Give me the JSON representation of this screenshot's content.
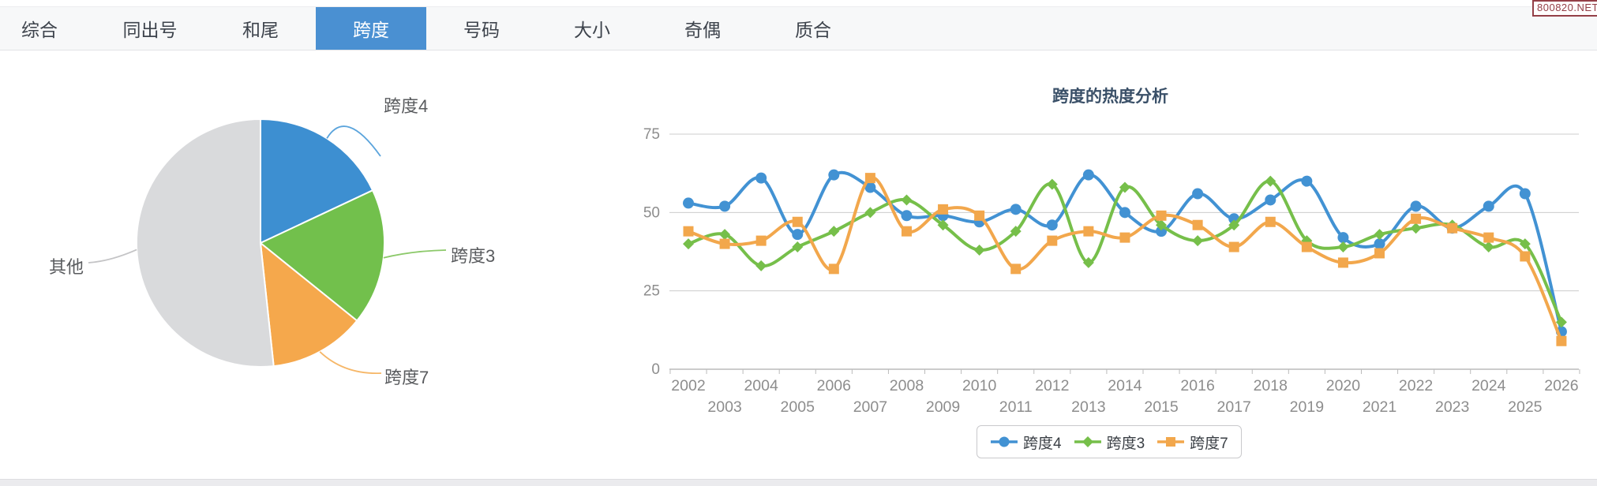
{
  "badge": {
    "text": "800820.NET"
  },
  "tabs": [
    {
      "name": "zonghe",
      "label": "综合",
      "active": false
    },
    {
      "name": "tongchuhao",
      "label": "同出号",
      "active": false
    },
    {
      "name": "hewei",
      "label": "和尾",
      "active": false
    },
    {
      "name": "kuadu",
      "label": "跨度",
      "active": true
    },
    {
      "name": "haoma",
      "label": "号码",
      "active": false
    },
    {
      "name": "daxiao",
      "label": "大小",
      "active": false
    },
    {
      "name": "jiou",
      "label": "奇偶",
      "active": false
    },
    {
      "name": "zhihe",
      "label": "质合",
      "active": false
    }
  ],
  "colors": {
    "accent": "#4a90d2",
    "blue": "#4292d3",
    "green": "#76bf4a",
    "orange": "#f2a74c",
    "pie_gray": "#d9dadc",
    "axis_text": "#8d8d8d",
    "grid": "#cccccc",
    "axis_line": "#bbbbbb",
    "title": "#3a5068",
    "badge": "#943f47"
  },
  "chart_data": [
    {
      "type": "pie",
      "title": "",
      "legend_position": "none",
      "slices": [
        {
          "label": "跨度4",
          "fraction": 0.18,
          "color": "#3d8fd1"
        },
        {
          "label": "跨度3",
          "fraction": 0.178,
          "color": "#72c04c"
        },
        {
          "label": "跨度7",
          "fraction": 0.125,
          "color": "#f5a84c"
        },
        {
          "label": "其他",
          "fraction": 0.517,
          "color": "#d9dadc"
        }
      ],
      "start_angle_deg": 0,
      "clockwise": true
    },
    {
      "type": "line",
      "title": "跨度的热度分析",
      "xlabel": "",
      "ylabel": "",
      "ylim": [
        0,
        75
      ],
      "yticks": [
        0,
        25,
        50,
        75
      ],
      "grid": true,
      "legend_position": "bottom",
      "x": [
        2002,
        2003,
        2004,
        2005,
        2006,
        2007,
        2008,
        2009,
        2010,
        2011,
        2012,
        2013,
        2014,
        2015,
        2016,
        2017,
        2018,
        2019,
        2020,
        2021,
        2022,
        2023,
        2024,
        2025,
        2026
      ],
      "series": [
        {
          "name": "跨度4",
          "color": "#4292d3",
          "marker": "circle",
          "values": [
            53,
            52,
            61,
            43,
            62,
            58,
            49,
            49,
            47,
            51,
            46,
            62,
            50,
            44,
            56,
            48,
            54,
            60,
            42,
            40,
            52,
            45,
            52,
            56,
            12
          ]
        },
        {
          "name": "跨度3",
          "color": "#76bf4a",
          "marker": "diamond",
          "values": [
            40,
            43,
            33,
            39,
            44,
            50,
            54,
            46,
            38,
            44,
            59,
            34,
            58,
            46,
            41,
            46,
            60,
            41,
            39,
            43,
            45,
            46,
            39,
            40,
            15
          ]
        },
        {
          "name": "跨度7",
          "color": "#f2a74c",
          "marker": "square",
          "values": [
            44,
            40,
            41,
            47,
            32,
            61,
            44,
            51,
            49,
            32,
            41,
            44,
            42,
            49,
            46,
            39,
            47,
            39,
            34,
            37,
            48,
            45,
            42,
            36,
            9
          ]
        }
      ]
    }
  ]
}
